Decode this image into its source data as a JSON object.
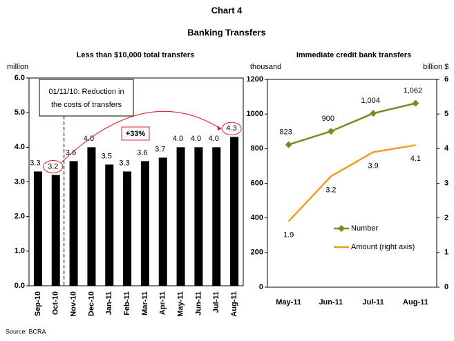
{
  "title": "Chart 4",
  "subtitle": "Banking Transfers",
  "source": "Source: BCRA",
  "chart_data": [
    {
      "type": "bar",
      "title": "Less than $10,000 total transfers",
      "ylabel": "million",
      "categories": [
        "Sep-10",
        "Oct-10",
        "Nov-10",
        "Dec-10",
        "Jan-11",
        "Feb-11",
        "Mar-11",
        "Apr-11",
        "May-11",
        "Jun-11",
        "Jul-11",
        "Aug-11"
      ],
      "values": [
        3.3,
        3.2,
        3.6,
        4.0,
        3.5,
        3.3,
        3.6,
        3.7,
        4.0,
        4.0,
        4.0,
        4.3
      ],
      "value_labels": [
        "3.3",
        "3.2",
        "3.6",
        "4.0",
        "3.5",
        "3.3",
        "3.6",
        "3.7",
        "4.0",
        "4.0",
        "4.0",
        "4.3"
      ],
      "color": "#000000",
      "ylim": [
        0,
        6
      ],
      "yticks": [
        {
          "value": 0,
          "label": "0.0"
        },
        {
          "value": 1,
          "label": "1.0"
        },
        {
          "value": 2,
          "label": "2.0"
        },
        {
          "value": 3,
          "label": "3.0"
        },
        {
          "value": 4,
          "label": "4.0"
        },
        {
          "value": 5,
          "label": "5.0"
        },
        {
          "value": 6,
          "label": "6.0"
        }
      ],
      "note_lines": [
        "01/11/10: Reduction in",
        "the costs of transfers"
      ],
      "growth_label": "+33%"
    },
    {
      "type": "line",
      "title": "Immediate credit bank transfers",
      "ylabel": "thousand",
      "y2label": "billion $",
      "categories": [
        "May-11",
        "Jun-11",
        "Jul-11",
        "Aug-11"
      ],
      "series": [
        {
          "name": "Number",
          "color": "#7a8a1e",
          "values": [
            823,
            900,
            1004,
            1062
          ],
          "value_labels": [
            "823",
            "900",
            "1,004",
            "1,062"
          ]
        },
        {
          "name": "Amount (right axis)",
          "color": "#f39a1f",
          "axis": "y2",
          "values": [
            1.9,
            3.2,
            3.9,
            4.1
          ]
        }
      ],
      "ylim": [
        0,
        1200
      ],
      "yticks": [
        0,
        200,
        400,
        600,
        800,
        1000,
        1200
      ],
      "y2lim": [
        0,
        6
      ],
      "y2ticks": [
        0,
        1,
        2,
        3,
        4,
        5,
        6
      ],
      "legend": "bottom"
    }
  ]
}
